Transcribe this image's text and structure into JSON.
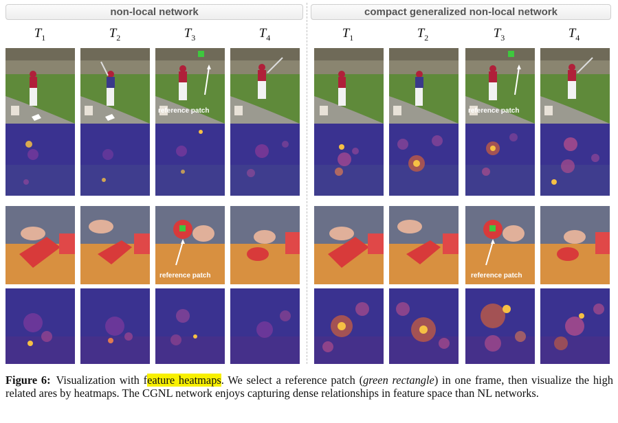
{
  "panels": {
    "left_title": "non-local network",
    "right_title": "compact generalized non-local network"
  },
  "time_labels": [
    {
      "base": "T",
      "sub": "1"
    },
    {
      "base": "T",
      "sub": "2"
    },
    {
      "base": "T",
      "sub": "3"
    },
    {
      "base": "T",
      "sub": "4"
    }
  ],
  "reference_label": "reference patch",
  "colors": {
    "reference_patch": "#3ec83e",
    "heatmap_background": "#3a2f86",
    "heatmap_hot": "#f6c044",
    "highlight": "#f8f000"
  },
  "caption": {
    "label": "Figure 6:",
    "text_before": "Visualization with f",
    "highlighted": "eature heatmaps",
    "text_after_1": ". We select a reference patch (",
    "italic": "green rectangle",
    "text_after_2": ") in one frame, then visualize the high related ares by heatmaps. The CGNL network enjoys capturing dense relationships in feature space than NL networks."
  }
}
